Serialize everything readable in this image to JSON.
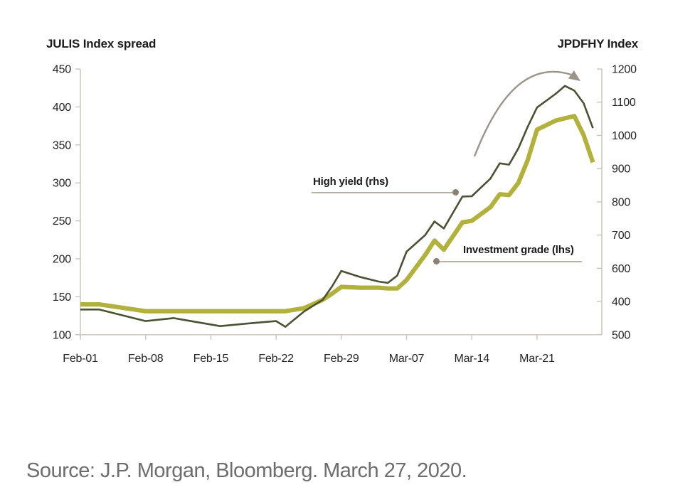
{
  "figure": {
    "left_axis_title": "JULIS Index spread",
    "right_axis_title": "JPDFHY Index",
    "source_text": "Source: J.P. Morgan, Bloomberg. March 27, 2020."
  },
  "colors": {
    "high_yield_line": "#495233",
    "investment_grade_line": "#b1b13b",
    "trend_arrow": "#9c948b",
    "leader_line": "#bab1a4",
    "leader_dot": "#8a8174",
    "axis": "#c9c3ba",
    "text": "#1b1b1b",
    "source_text": "#6d6d6d"
  },
  "chart_data": {
    "type": "line",
    "grid": false,
    "legend_position": "inline-annotations",
    "left_axis": {
      "title": "JULIS Index spread",
      "tick_labels_top_to_bottom": [
        "450",
        "400",
        "350",
        "300",
        "250",
        "200",
        "150",
        "100"
      ],
      "range": [
        100,
        450
      ]
    },
    "right_axis": {
      "title": "JPDFHY Index",
      "tick_labels_top_to_bottom": [
        "1200",
        "1100",
        "1000",
        "900",
        "800",
        "700",
        "600",
        "400",
        "500"
      ],
      "range": [
        400,
        1200
      ]
    },
    "x_ticks": [
      "Feb-01",
      "Feb-08",
      "Feb-15",
      "Feb-22",
      "Feb-29",
      "Mar-07",
      "Mar-14",
      "Mar-21"
    ],
    "dates": [
      "Feb-01",
      "Feb-03",
      "Feb-08",
      "Feb-11",
      "Feb-16",
      "Feb-19",
      "Feb-22",
      "Feb-23",
      "Feb-25",
      "Feb-27",
      "Feb-28",
      "Feb-29",
      "Mar-02",
      "Mar-04",
      "Mar-05",
      "Mar-06",
      "Mar-07",
      "Mar-09",
      "Mar-10",
      "Mar-11",
      "Mar-13",
      "Mar-14",
      "Mar-16",
      "Mar-17",
      "Mar-18",
      "Mar-19",
      "Mar-20",
      "Mar-21",
      "Mar-23",
      "Mar-24",
      "Mar-25",
      "Mar-26",
      "Mar-27"
    ],
    "day_offsets": [
      0,
      2,
      7,
      10,
      15,
      18,
      21,
      22,
      24,
      26,
      27,
      28,
      30,
      32,
      33,
      34,
      35,
      37,
      38,
      39,
      41,
      42,
      44,
      45,
      46,
      47,
      48,
      49,
      51,
      52,
      53,
      54,
      55
    ],
    "series": [
      {
        "name": "High yield (rhs)",
        "axis": "right",
        "color": "#495233",
        "values": [
          476,
          476,
          441,
          450,
          426,
          434,
          441,
          424,
          470,
          505,
          545,
          592,
          574,
          560,
          556,
          578,
          650,
          700,
          741,
          720,
          816,
          817,
          870,
          916,
          912,
          961,
          1026,
          1084,
          1125,
          1149,
          1135,
          1097,
          1022
        ]
      },
      {
        "name": "Investment grade (lhs)",
        "axis": "left",
        "color": "#b1b13b",
        "values": [
          140,
          140,
          131,
          131,
          131,
          131,
          131,
          131,
          135,
          146,
          154,
          163,
          162,
          162,
          161,
          161,
          172,
          205,
          224,
          212,
          248,
          250,
          268,
          285,
          284,
          300,
          330,
          370,
          382,
          385,
          388,
          363,
          327
        ]
      }
    ]
  }
}
